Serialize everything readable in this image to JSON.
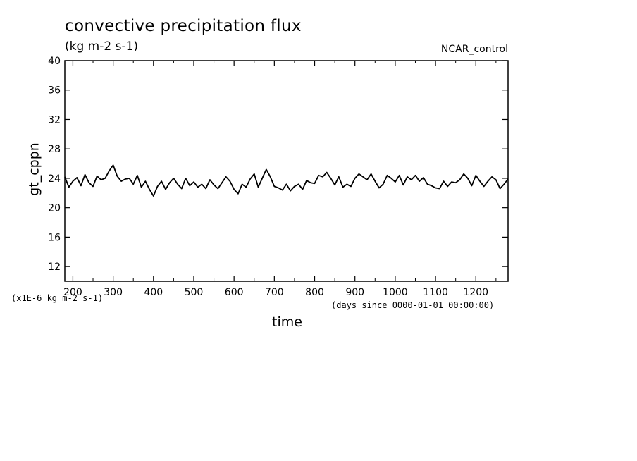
{
  "chart_data": {
    "type": "line",
    "title": "convective precipitation flux",
    "subtitle": "(kg m-2 s-1)",
    "run_label": "NCAR_control",
    "ylabel": "gt_cppn",
    "xlabel": "time",
    "y_scale_note": "(x1E-6 kg m-2 s-1)",
    "x_units_note": "(days since 0000-01-01 00:00:00)",
    "xlim": [
      180,
      1280
    ],
    "ylim": [
      10,
      40
    ],
    "x_ticks": [
      200,
      300,
      400,
      500,
      600,
      700,
      800,
      900,
      1000,
      1100,
      1200
    ],
    "y_ticks": [
      12,
      16,
      20,
      24,
      28,
      32,
      36,
      40
    ],
    "grid": false,
    "series": [
      {
        "color": "#000000",
        "x": [
          180,
          190,
          200,
          210,
          220,
          230,
          240,
          250,
          260,
          270,
          280,
          290,
          300,
          310,
          320,
          330,
          340,
          350,
          360,
          370,
          380,
          390,
          400,
          410,
          420,
          430,
          440,
          450,
          460,
          470,
          480,
          490,
          500,
          510,
          520,
          530,
          540,
          550,
          560,
          570,
          580,
          590,
          600,
          610,
          620,
          630,
          640,
          650,
          660,
          670,
          680,
          690,
          700,
          710,
          720,
          730,
          740,
          750,
          760,
          770,
          780,
          790,
          800,
          810,
          820,
          830,
          840,
          850,
          860,
          870,
          880,
          890,
          900,
          910,
          920,
          930,
          940,
          950,
          960,
          970,
          980,
          990,
          1000,
          1010,
          1020,
          1030,
          1040,
          1050,
          1060,
          1070,
          1080,
          1090,
          1100,
          1110,
          1120,
          1130,
          1140,
          1150,
          1160,
          1170,
          1180,
          1190,
          1200,
          1210,
          1220,
          1230,
          1240,
          1250,
          1260,
          1270,
          1280
        ],
        "y": [
          24.2,
          22.8,
          23.6,
          24.1,
          23.0,
          24.5,
          23.4,
          22.9,
          24.3,
          23.8,
          24.0,
          25.0,
          25.8,
          24.3,
          23.6,
          23.9,
          24.0,
          23.2,
          24.4,
          22.8,
          23.6,
          22.5,
          21.6,
          22.9,
          23.6,
          22.5,
          23.4,
          24.0,
          23.2,
          22.6,
          24.0,
          23.0,
          23.5,
          22.8,
          23.2,
          22.6,
          23.8,
          23.1,
          22.6,
          23.4,
          24.2,
          23.6,
          22.5,
          21.9,
          23.2,
          22.8,
          23.9,
          24.6,
          22.8,
          24.0,
          25.2,
          24.2,
          22.9,
          22.7,
          22.4,
          23.2,
          22.3,
          22.9,
          23.2,
          22.5,
          23.7,
          23.4,
          23.3,
          24.4,
          24.2,
          24.8,
          24.0,
          23.1,
          24.2,
          22.8,
          23.2,
          22.9,
          24.0,
          24.6,
          24.2,
          23.8,
          24.6,
          23.6,
          22.7,
          23.2,
          24.4,
          24.0,
          23.5,
          24.4,
          23.1,
          24.2,
          23.8,
          24.4,
          23.6,
          24.1,
          23.2,
          23.0,
          22.7,
          22.6,
          23.6,
          22.9,
          23.5,
          23.4,
          23.8,
          24.6,
          24.0,
          23.0,
          24.4,
          23.6,
          22.9,
          23.6,
          24.2,
          23.8,
          22.6,
          23.2,
          23.9
        ]
      }
    ]
  }
}
